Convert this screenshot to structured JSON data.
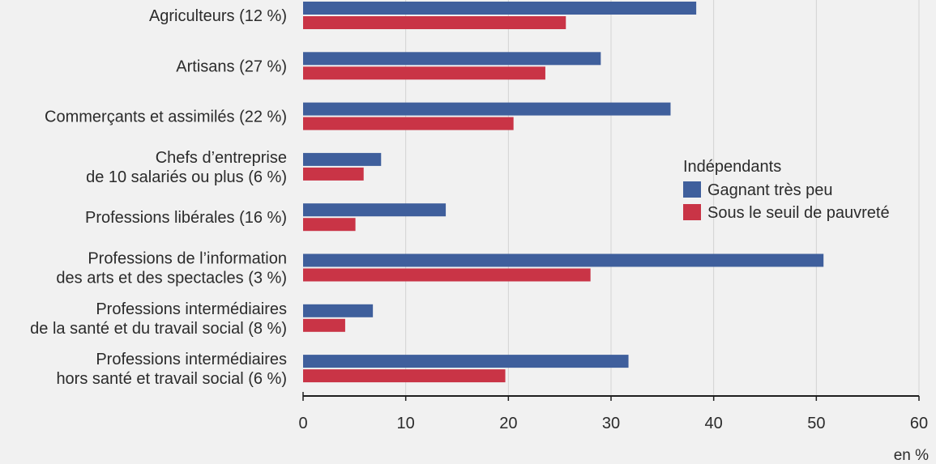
{
  "chart_data": {
    "type": "bar",
    "orientation": "horizontal",
    "categories": [
      [
        "Agriculteurs (12 %)"
      ],
      [
        "Artisans (27 %)"
      ],
      [
        "Commerçants et assimilés (22 %)"
      ],
      [
        "Chefs d’entreprise",
        "de 10 salariés ou plus (6 %)"
      ],
      [
        "Professions libérales (16 %)"
      ],
      [
        "Professions de l’information",
        "des arts et des spectacles (3 %)"
      ],
      [
        "Professions intermédiaires",
        "de la santé et du travail social (8 %)"
      ],
      [
        "Professions intermédiaires",
        "hors santé et travail social (6 %)"
      ]
    ],
    "series": [
      {
        "name": "Gagnant très peu",
        "color": "#3f5f9c",
        "values": [
          38.3,
          29.0,
          35.8,
          7.6,
          13.9,
          50.7,
          6.8,
          31.7
        ]
      },
      {
        "name": "Sous le seuil de pauvreté",
        "color": "#c93446",
        "values": [
          25.6,
          23.6,
          20.5,
          5.9,
          5.1,
          28.0,
          4.1,
          19.7
        ]
      }
    ],
    "legend": {
      "title": "Indépendants",
      "placement": "right"
    },
    "xlim": [
      0,
      60
    ],
    "xticks": [
      0,
      10,
      20,
      30,
      40,
      50,
      60
    ],
    "unit_label": "en %",
    "grid": true
  }
}
